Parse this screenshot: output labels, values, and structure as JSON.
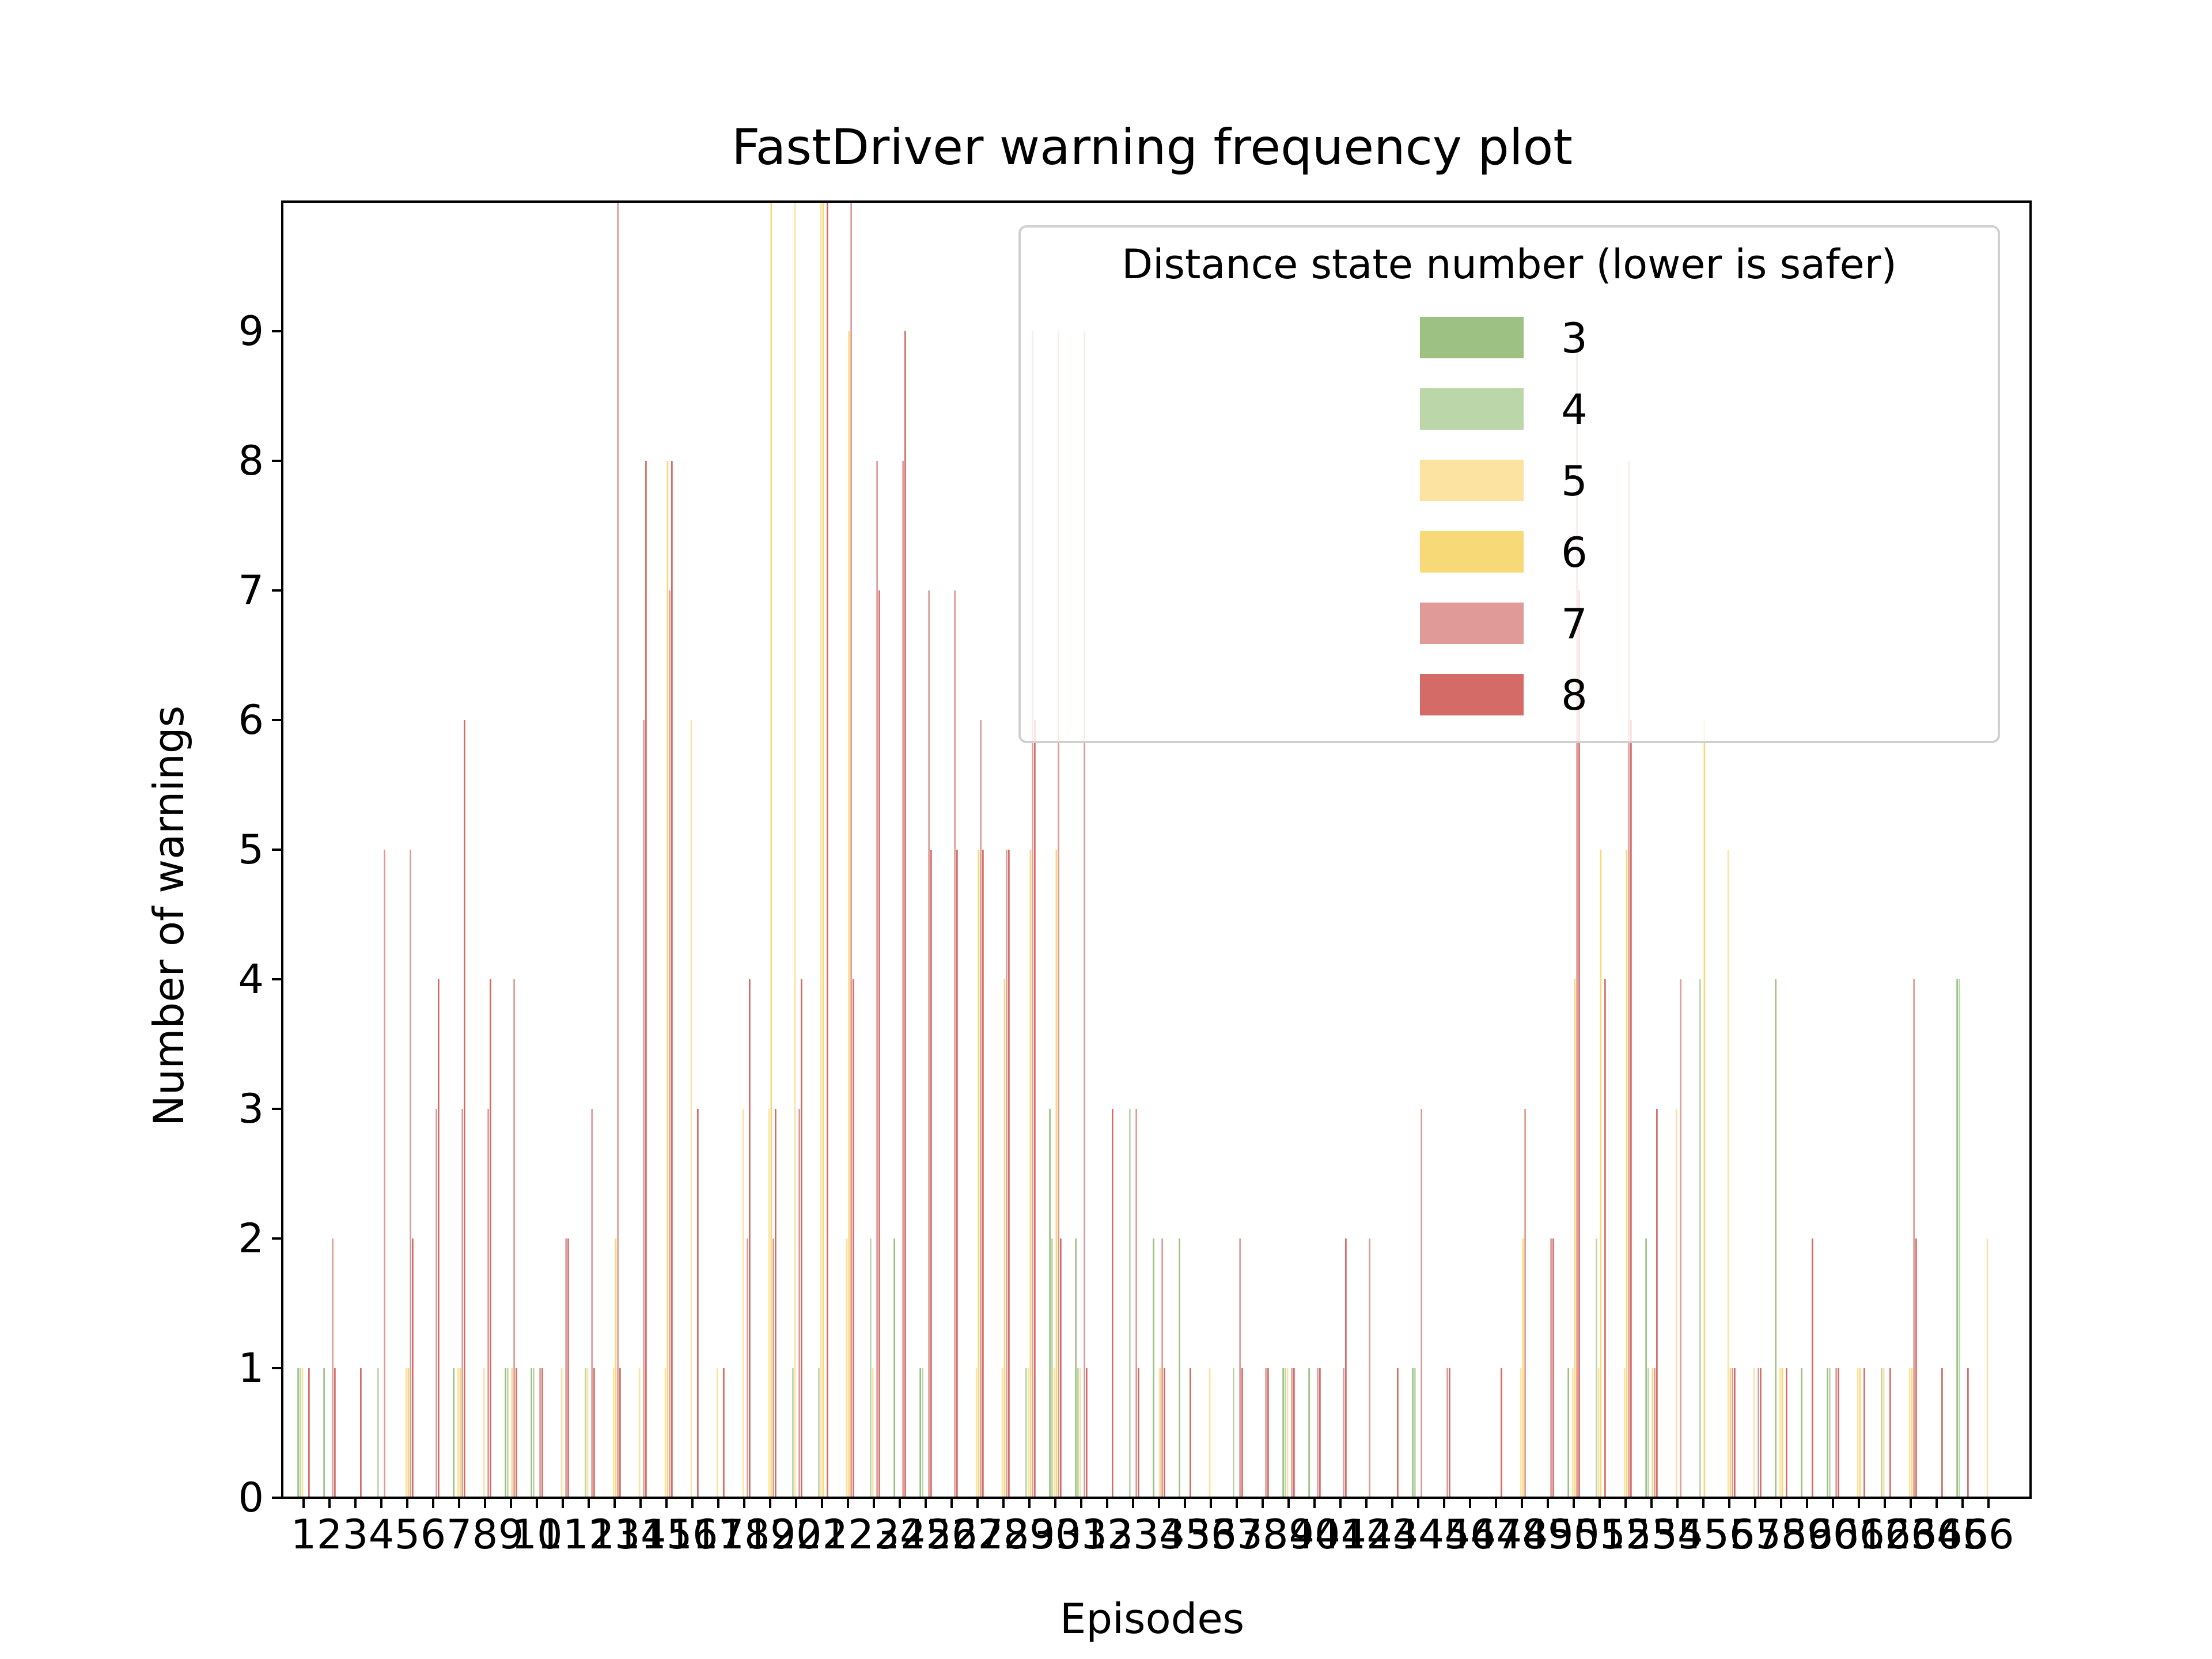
{
  "chart_data": {
    "type": "bar",
    "title": "FastDriver warning frequency plot",
    "xlabel": "Episodes",
    "ylabel": "Number of warnings",
    "ylim": [
      0,
      10
    ],
    "yticks": [
      0,
      1,
      2,
      3,
      4,
      5,
      6,
      7,
      8,
      9
    ],
    "grid": false,
    "legend": {
      "title": "Distance state number (lower is safer)",
      "placement": "top-right"
    },
    "categories": [
      1,
      2,
      3,
      4,
      5,
      6,
      7,
      8,
      9,
      10,
      11,
      12,
      13,
      14,
      15,
      16,
      17,
      18,
      19,
      20,
      21,
      22,
      23,
      24,
      25,
      26,
      27,
      28,
      29,
      30,
      31,
      32,
      33,
      34,
      35,
      36,
      37,
      38,
      39,
      40,
      41,
      42,
      43,
      44,
      45,
      46,
      47,
      48,
      49,
      50,
      51,
      52,
      53,
      54,
      55,
      56,
      57,
      58,
      59,
      60,
      61,
      62,
      63,
      64,
      65,
      66
    ],
    "series": [
      {
        "name": "3",
        "color": "#9dc183",
        "values": [
          1,
          1,
          0,
          0,
          0,
          0,
          1,
          0,
          1,
          1,
          0,
          0,
          0,
          0,
          0,
          0,
          0,
          0,
          0,
          0,
          0,
          0,
          0,
          2,
          1,
          0,
          0,
          0,
          0,
          3,
          2,
          0,
          0,
          2,
          2,
          0,
          0,
          0,
          1,
          1,
          0,
          0,
          0,
          1,
          0,
          0,
          0,
          0,
          0,
          1,
          0,
          0,
          2,
          0,
          0,
          0,
          0,
          4,
          1,
          1,
          0,
          0,
          0,
          0,
          4,
          0
        ]
      },
      {
        "name": "4",
        "color": "#bbd6a9",
        "values": [
          1,
          0,
          0,
          1,
          0,
          0,
          0,
          0,
          1,
          1,
          0,
          1,
          0,
          0,
          0,
          0,
          0,
          0,
          0,
          1,
          1,
          0,
          2,
          0,
          1,
          0,
          0,
          0,
          1,
          2,
          1,
          0,
          3,
          0,
          0,
          0,
          1,
          0,
          1,
          0,
          0,
          0,
          0,
          1,
          0,
          0,
          0,
          0,
          0,
          0,
          2,
          0,
          1,
          0,
          4,
          0,
          0,
          0,
          0,
          1,
          0,
          1,
          0,
          0,
          4,
          0
        ]
      },
      {
        "name": "5",
        "color": "#fce3a1",
        "values": [
          1,
          0,
          0,
          0,
          1,
          0,
          1,
          1,
          0,
          0,
          1,
          1,
          1,
          1,
          1,
          6,
          1,
          3,
          3,
          10,
          10,
          2,
          1,
          0,
          0,
          0,
          1,
          1,
          1,
          1,
          1,
          0,
          0,
          0,
          0,
          1,
          0,
          0,
          1,
          0,
          0,
          0,
          0,
          0,
          0,
          0,
          0,
          1,
          0,
          1,
          1,
          1,
          0,
          3,
          0,
          5,
          1,
          1,
          0,
          0,
          1,
          1,
          1,
          0,
          0,
          2
        ]
      },
      {
        "name": "6",
        "color": "#f8d977",
        "values": [
          0,
          0,
          0,
          0,
          1,
          0,
          1,
          0,
          1,
          0,
          0,
          0,
          2,
          0,
          8,
          0,
          0,
          0,
          10,
          0,
          10,
          9,
          0,
          0,
          0,
          0,
          5,
          4,
          5,
          5,
          0,
          0,
          0,
          1,
          0,
          0,
          0,
          0,
          0,
          0,
          0,
          0,
          0,
          0,
          0,
          0,
          0,
          2,
          0,
          4,
          5,
          5,
          1,
          0,
          6,
          1,
          0,
          1,
          0,
          0,
          1,
          0,
          1,
          0,
          0,
          0
        ]
      },
      {
        "name": "7",
        "color": "#e09b98",
        "values": [
          0,
          2,
          0,
          5,
          5,
          3,
          3,
          3,
          4,
          1,
          2,
          3,
          10,
          6,
          7,
          0,
          0,
          2,
          2,
          3,
          0,
          10,
          8,
          8,
          7,
          7,
          6,
          5,
          9,
          9,
          9,
          0,
          3,
          2,
          0,
          0,
          2,
          1,
          1,
          1,
          1,
          2,
          0,
          3,
          1,
          0,
          0,
          3,
          2,
          9,
          0,
          8,
          1,
          4,
          0,
          1,
          1,
          0,
          0,
          1,
          0,
          0,
          4,
          0,
          0,
          0
        ]
      },
      {
        "name": "8",
        "color": "#d46b67",
        "values": [
          1,
          1,
          1,
          0,
          2,
          4,
          6,
          4,
          1,
          1,
          2,
          1,
          1,
          8,
          8,
          3,
          1,
          4,
          3,
          4,
          10,
          4,
          7,
          9,
          5,
          5,
          5,
          5,
          6,
          2,
          1,
          3,
          1,
          1,
          1,
          0,
          1,
          1,
          1,
          1,
          2,
          0,
          1,
          0,
          1,
          0,
          1,
          0,
          2,
          7,
          4,
          6,
          3,
          0,
          0,
          1,
          1,
          1,
          2,
          1,
          1,
          1,
          2,
          1,
          1,
          0
        ]
      }
    ]
  }
}
